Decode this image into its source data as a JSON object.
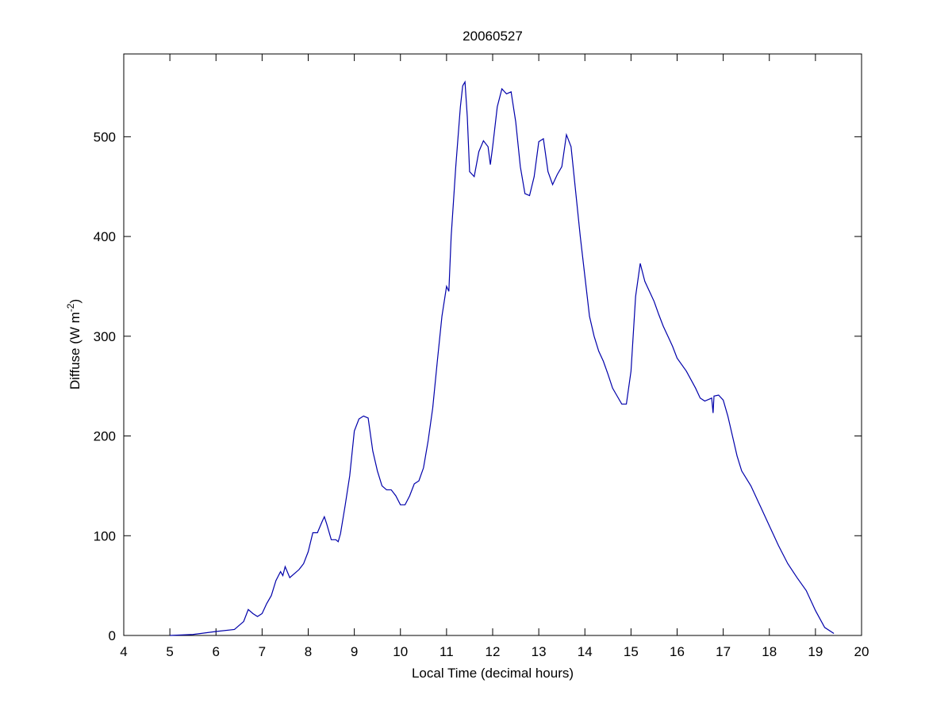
{
  "chart_data": {
    "type": "line",
    "title": "20060527",
    "xlabel": "Local Time (decimal hours)",
    "ylabel_parts": [
      "Diffuse (W m",
      "-2",
      ")"
    ],
    "xlim": [
      4,
      20
    ],
    "xticks": [
      4,
      5,
      6,
      7,
      8,
      9,
      10,
      11,
      12,
      13,
      14,
      15,
      16,
      17,
      18,
      19,
      20
    ],
    "ylim": [
      0,
      583
    ],
    "yticks": [
      0,
      100,
      200,
      300,
      400,
      500
    ],
    "series": [
      {
        "color": "#0000aa",
        "x": [
          5.0,
          5.5,
          6.0,
          6.4,
          6.6,
          6.7,
          6.8,
          6.9,
          7.0,
          7.1,
          7.2,
          7.3,
          7.4,
          7.45,
          7.5,
          7.6,
          7.7,
          7.8,
          7.9,
          8.0,
          8.1,
          8.2,
          8.3,
          8.35,
          8.4,
          8.5,
          8.6,
          8.65,
          8.7,
          8.8,
          8.9,
          9.0,
          9.1,
          9.2,
          9.3,
          9.4,
          9.5,
          9.6,
          9.7,
          9.8,
          9.9,
          10.0,
          10.1,
          10.2,
          10.3,
          10.4,
          10.5,
          10.6,
          10.7,
          10.8,
          10.9,
          11.0,
          11.05,
          11.1,
          11.2,
          11.3,
          11.35,
          11.4,
          11.45,
          11.5,
          11.6,
          11.7,
          11.8,
          11.9,
          11.95,
          12.0,
          12.1,
          12.2,
          12.3,
          12.4,
          12.5,
          12.6,
          12.7,
          12.8,
          12.9,
          13.0,
          13.1,
          13.2,
          13.3,
          13.4,
          13.5,
          13.6,
          13.7,
          13.8,
          13.9,
          14.0,
          14.1,
          14.2,
          14.3,
          14.4,
          14.5,
          14.6,
          14.7,
          14.8,
          14.9,
          15.0,
          15.1,
          15.2,
          15.3,
          15.4,
          15.5,
          15.6,
          15.7,
          15.8,
          15.9,
          16.0,
          16.2,
          16.4,
          16.5,
          16.6,
          16.7,
          16.75,
          16.78,
          16.8,
          16.9,
          17.0,
          17.1,
          17.2,
          17.3,
          17.4,
          17.6,
          17.8,
          18.0,
          18.2,
          18.4,
          18.6,
          18.8,
          19.0,
          19.2,
          19.4
        ],
        "values": [
          0,
          1,
          4,
          6,
          14,
          26,
          22,
          19,
          22,
          32,
          40,
          55,
          64,
          60,
          69,
          58,
          62,
          66,
          72,
          84,
          103,
          103,
          114,
          119,
          112,
          96,
          96,
          94,
          102,
          130,
          160,
          205,
          217,
          220,
          218,
          185,
          165,
          150,
          146,
          146,
          140,
          131,
          131,
          140,
          152,
          155,
          168,
          195,
          228,
          275,
          320,
          350,
          345,
          400,
          470,
          530,
          551,
          555,
          520,
          465,
          460,
          485,
          496,
          490,
          472,
          490,
          530,
          548,
          543,
          545,
          515,
          470,
          443,
          441,
          460,
          495,
          498,
          465,
          452,
          462,
          470,
          502,
          490,
          445,
          400,
          360,
          320,
          300,
          285,
          275,
          262,
          248,
          240,
          232,
          232,
          265,
          340,
          373,
          355,
          345,
          335,
          322,
          310,
          300,
          290,
          278,
          265,
          248,
          238,
          235,
          237,
          238,
          223,
          240,
          241,
          236,
          220,
          200,
          180,
          165,
          150,
          130,
          110,
          90,
          72,
          58,
          45,
          25,
          8,
          2
        ]
      }
    ]
  }
}
